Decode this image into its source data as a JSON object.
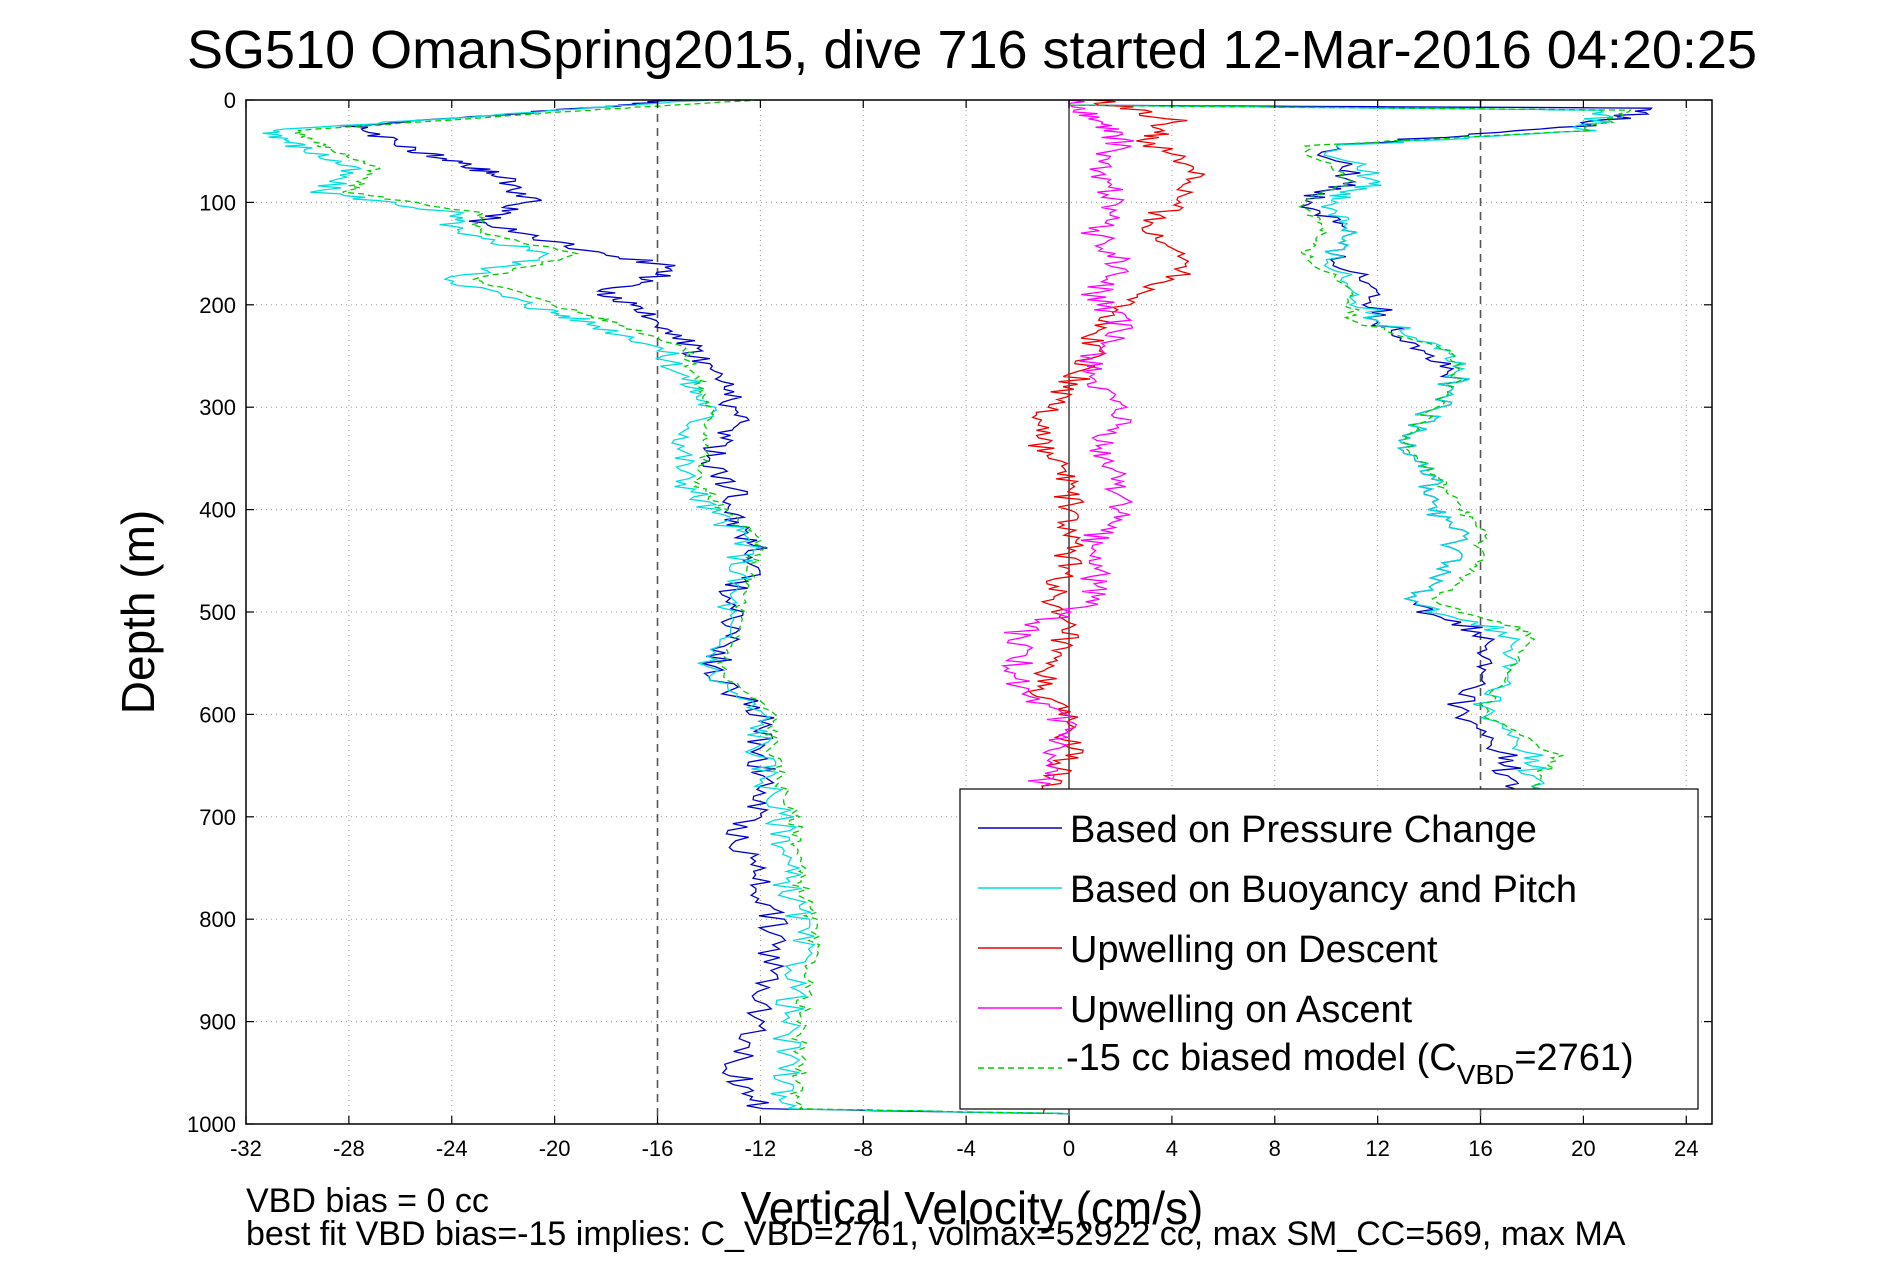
{
  "chart_data": {
    "type": "line",
    "title": "SG510 OmanSpring2015, dive 716 started 12-Mar-2016 04:20:25",
    "xlabel": "Vertical Velocity (cm/s)",
    "ylabel": "Depth (m)",
    "xlim": [
      -32,
      25
    ],
    "ylim": [
      1000,
      0
    ],
    "y_reversed": true,
    "x_ticks": [
      "-32",
      "-28",
      "-24",
      "-20",
      "-16",
      "-12",
      "-8",
      "-4",
      "0",
      "4",
      "8",
      "12",
      "16",
      "20",
      "24"
    ],
    "y_ticks": [
      "0",
      "100",
      "200",
      "300",
      "400",
      "500",
      "600",
      "700",
      "800",
      "900",
      "1000"
    ],
    "grid": true,
    "legend_position": "bottom-right",
    "reference_lines": {
      "dashed_x": [
        -16,
        16
      ],
      "solid_x": [
        0
      ]
    },
    "series": [
      {
        "name": "Based on Pressure Change",
        "color": "#0000cc",
        "descent": [
          [
            -15,
            0
          ],
          [
            -20,
            10
          ],
          [
            -28,
            25
          ],
          [
            -26,
            45
          ],
          [
            -24,
            60
          ],
          [
            -22,
            75
          ],
          [
            -21,
            100
          ],
          [
            -23,
            120
          ],
          [
            -19,
            145
          ],
          [
            -15,
            165
          ],
          [
            -18,
            185
          ],
          [
            -17,
            205
          ],
          [
            -15,
            230
          ],
          [
            -14,
            260
          ],
          [
            -13,
            290
          ],
          [
            -13,
            320
          ],
          [
            -14,
            350
          ],
          [
            -13,
            380
          ],
          [
            -13,
            410
          ],
          [
            -12,
            440
          ],
          [
            -13,
            480
          ],
          [
            -13,
            520
          ],
          [
            -14,
            560
          ],
          [
            -12,
            600
          ],
          [
            -12,
            640
          ],
          [
            -12,
            680
          ],
          [
            -13,
            720
          ],
          [
            -12,
            760
          ],
          [
            -11.5,
            800
          ],
          [
            -11.5,
            850
          ],
          [
            -12,
            900
          ],
          [
            -13,
            950
          ],
          [
            -12,
            985
          ],
          [
            0,
            990
          ]
        ],
        "ascent": [
          [
            0,
            5
          ],
          [
            23,
            8
          ],
          [
            20,
            25
          ],
          [
            10,
            45
          ],
          [
            11,
            80
          ],
          [
            9,
            100
          ],
          [
            11,
            125
          ],
          [
            10,
            150
          ],
          [
            12,
            185
          ],
          [
            12,
            215
          ],
          [
            14,
            245
          ],
          [
            15,
            275
          ],
          [
            14,
            305
          ],
          [
            13,
            330
          ],
          [
            14,
            360
          ],
          [
            14,
            390
          ],
          [
            15,
            420
          ],
          [
            15,
            455
          ],
          [
            13,
            490
          ],
          [
            16,
            520
          ],
          [
            16,
            560
          ],
          [
            15,
            600
          ],
          [
            17,
            640
          ],
          [
            17,
            670
          ],
          [
            16,
            700
          ],
          [
            18,
            740
          ],
          [
            18,
            780
          ],
          [
            17,
            820
          ],
          [
            16,
            860
          ],
          [
            17,
            900
          ],
          [
            17,
            950
          ],
          [
            16,
            985
          ]
        ]
      },
      {
        "name": "Based on Buoyancy and Pitch",
        "color": "#00dddd",
        "descent": [
          [
            -14,
            0
          ],
          [
            -20,
            10
          ],
          [
            -31,
            30
          ],
          [
            -30,
            45
          ],
          [
            -28,
            65
          ],
          [
            -29,
            90
          ],
          [
            -24,
            110
          ],
          [
            -24,
            130
          ],
          [
            -20,
            150
          ],
          [
            -24,
            175
          ],
          [
            -21,
            200
          ],
          [
            -19,
            215
          ],
          [
            -16,
            240
          ],
          [
            -15,
            270
          ],
          [
            -14,
            300
          ],
          [
            -15,
            335
          ],
          [
            -15,
            370
          ],
          [
            -14,
            400
          ],
          [
            -12.5,
            430
          ],
          [
            -13,
            470
          ],
          [
            -13.5,
            520
          ],
          [
            -14,
            560
          ],
          [
            -12,
            600
          ],
          [
            -12,
            640
          ],
          [
            -11.5,
            680
          ],
          [
            -11,
            720
          ],
          [
            -11,
            760
          ],
          [
            -10.5,
            800
          ],
          [
            -10.5,
            850
          ],
          [
            -11,
            900
          ],
          [
            -11,
            950
          ],
          [
            -11,
            985
          ],
          [
            0,
            990
          ]
        ],
        "ascent": [
          [
            0,
            5
          ],
          [
            21,
            10
          ],
          [
            20,
            30
          ],
          [
            10,
            45
          ],
          [
            12,
            80
          ],
          [
            10,
            100
          ],
          [
            11,
            125
          ],
          [
            10,
            150
          ],
          [
            11,
            185
          ],
          [
            12,
            215
          ],
          [
            15,
            245
          ],
          [
            15,
            275
          ],
          [
            14,
            305
          ],
          [
            13,
            330
          ],
          [
            14,
            360
          ],
          [
            14,
            390
          ],
          [
            15,
            420
          ],
          [
            15,
            455
          ],
          [
            13,
            490
          ],
          [
            17,
            520
          ],
          [
            17,
            560
          ],
          [
            16,
            600
          ],
          [
            18,
            640
          ],
          [
            18,
            670
          ],
          [
            17,
            700
          ],
          [
            19,
            740
          ],
          [
            19,
            780
          ],
          [
            18,
            820
          ],
          [
            17,
            860
          ],
          [
            18,
            900
          ],
          [
            18,
            950
          ],
          [
            17,
            985
          ]
        ]
      },
      {
        "name": "Upwelling on Descent",
        "color": "#ee0000",
        "points": [
          [
            1,
            0
          ],
          [
            4,
            20
          ],
          [
            3,
            40
          ],
          [
            5,
            70
          ],
          [
            4,
            100
          ],
          [
            3,
            130
          ],
          [
            5,
            160
          ],
          [
            3,
            190
          ],
          [
            1,
            220
          ],
          [
            1,
            250
          ],
          [
            0,
            280
          ],
          [
            -1,
            310
          ],
          [
            -1,
            340
          ],
          [
            0,
            370
          ],
          [
            0,
            400
          ],
          [
            0,
            430
          ],
          [
            0,
            460
          ],
          [
            -1,
            490
          ],
          [
            0,
            520
          ],
          [
            -1,
            550
          ],
          [
            -1,
            580
          ],
          [
            0,
            610
          ],
          [
            0,
            640
          ],
          [
            -1,
            670
          ],
          [
            -1,
            700
          ],
          [
            -1,
            990
          ]
        ]
      },
      {
        "name": "Upwelling on Ascent",
        "color": "#ff00ff",
        "points": [
          [
            0,
            0
          ],
          [
            1,
            20
          ],
          [
            2,
            40
          ],
          [
            1,
            70
          ],
          [
            2,
            100
          ],
          [
            1,
            130
          ],
          [
            2,
            160
          ],
          [
            1,
            190
          ],
          [
            2,
            220
          ],
          [
            1,
            250
          ],
          [
            1,
            280
          ],
          [
            2,
            310
          ],
          [
            1,
            340
          ],
          [
            2,
            370
          ],
          [
            2,
            400
          ],
          [
            1,
            430
          ],
          [
            1,
            460
          ],
          [
            1,
            490
          ],
          [
            -2,
            520
          ],
          [
            -2,
            550
          ],
          [
            -2,
            580
          ],
          [
            0,
            610
          ],
          [
            -1,
            640
          ],
          [
            -1,
            670
          ]
        ]
      },
      {
        "name": "-15 cc biased model (C",
        "name_subscript": "VBD",
        "name_suffix": "=2761)",
        "color": "#00cc00",
        "dashed": true,
        "descent": [
          [
            -12,
            0
          ],
          [
            -20,
            12
          ],
          [
            -30,
            30
          ],
          [
            -29,
            45
          ],
          [
            -27,
            65
          ],
          [
            -28,
            90
          ],
          [
            -23,
            110
          ],
          [
            -23,
            130
          ],
          [
            -19,
            150
          ],
          [
            -23,
            175
          ],
          [
            -20,
            200
          ],
          [
            -18,
            215
          ],
          [
            -15,
            240
          ],
          [
            -14.5,
            270
          ],
          [
            -14,
            300
          ],
          [
            -14,
            335
          ],
          [
            -14.5,
            370
          ],
          [
            -13.5,
            400
          ],
          [
            -12,
            430
          ],
          [
            -12.5,
            470
          ],
          [
            -13,
            520
          ],
          [
            -13.5,
            560
          ],
          [
            -11.5,
            600
          ],
          [
            -11.5,
            640
          ],
          [
            -11,
            680
          ],
          [
            -10.5,
            720
          ],
          [
            -10.5,
            760
          ],
          [
            -10,
            800
          ],
          [
            -10,
            850
          ],
          [
            -10.5,
            900
          ],
          [
            -10.5,
            950
          ],
          [
            -10.5,
            985
          ],
          [
            0,
            990
          ]
        ],
        "ascent": [
          [
            0,
            5
          ],
          [
            22,
            10
          ],
          [
            20,
            30
          ],
          [
            9,
            45
          ],
          [
            11,
            80
          ],
          [
            9,
            100
          ],
          [
            10,
            125
          ],
          [
            9,
            150
          ],
          [
            11,
            185
          ],
          [
            11,
            215
          ],
          [
            15,
            245
          ],
          [
            15,
            275
          ],
          [
            14,
            305
          ],
          [
            13,
            330
          ],
          [
            14,
            360
          ],
          [
            15,
            390
          ],
          [
            16,
            420
          ],
          [
            16,
            455
          ],
          [
            14,
            490
          ],
          [
            18,
            520
          ],
          [
            17,
            560
          ],
          [
            16,
            600
          ],
          [
            19,
            640
          ],
          [
            18,
            670
          ],
          [
            17,
            700
          ],
          [
            19,
            740
          ],
          [
            19,
            780
          ],
          [
            18,
            820
          ],
          [
            17,
            860
          ],
          [
            18,
            900
          ],
          [
            18,
            950
          ],
          [
            17,
            985
          ]
        ]
      }
    ]
  },
  "footnote_lines": [
    "VBD bias = 0 cc",
    "best fit VBD bias=-15 implies: C_VBD=2761, volmax=52922 cc, max SM_CC=569, max MA"
  ]
}
